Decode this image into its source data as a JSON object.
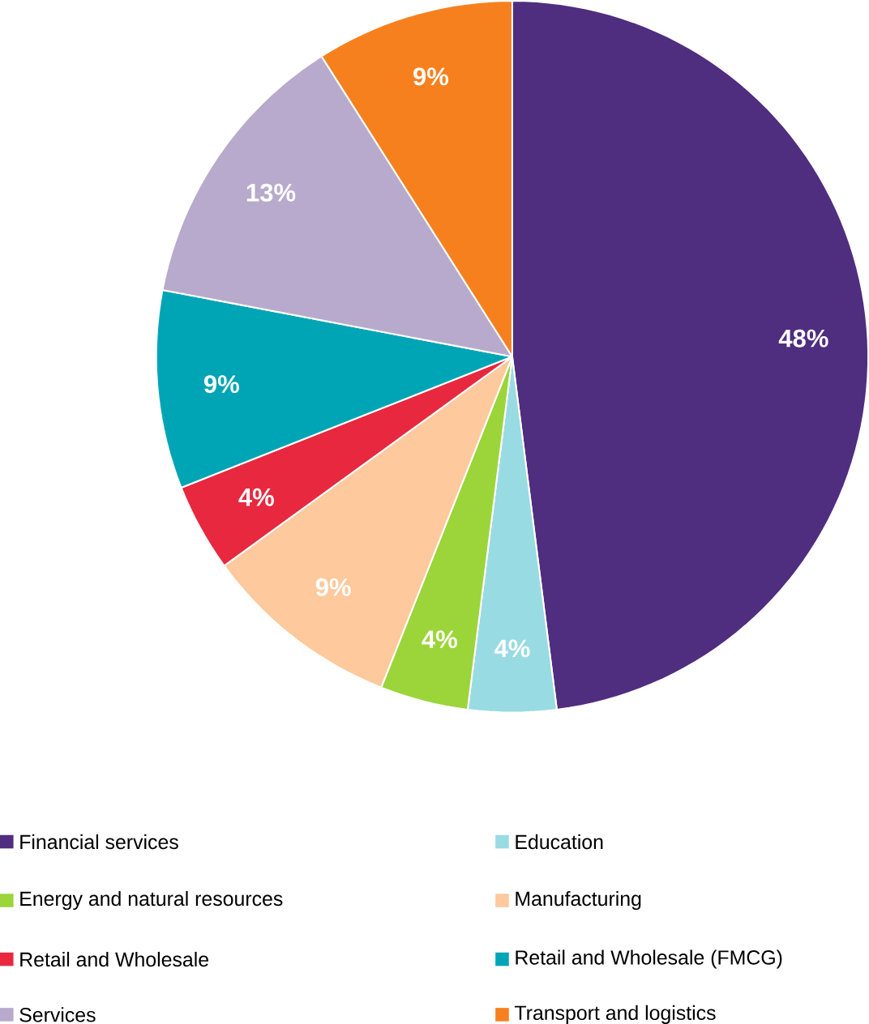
{
  "chart_data": {
    "type": "pie",
    "legend": "bottom",
    "categories": [
      "Financial services",
      "Education",
      "Energy and natural resources",
      "Manufacturing",
      "Retail and Wholesale",
      "Retail and Wholesale (FMCG)",
      "Services",
      "Transport and logistics"
    ],
    "values": [
      48,
      4,
      4,
      9,
      4,
      9,
      13,
      9
    ],
    "value_labels": [
      "48%",
      "4%",
      "4%",
      "9%",
      "4%",
      "9%",
      "13%",
      "9%"
    ],
    "colors": [
      "#4f2d7f",
      "#99dbe2",
      "#9bd53a",
      "#fdc99d",
      "#e8283f",
      "#00a5b5",
      "#b8aacc",
      "#f7801e"
    ]
  }
}
